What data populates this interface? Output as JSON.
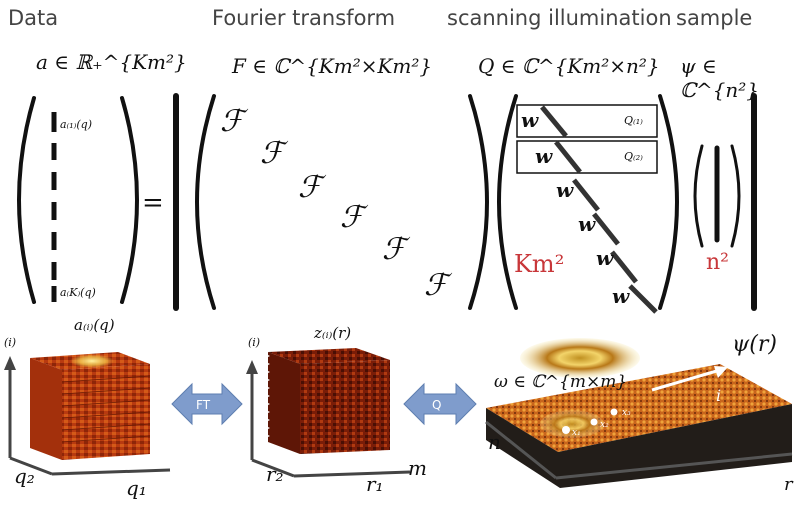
{
  "headers": {
    "data": "Data",
    "fourier": "Fourier transform",
    "scanning": "scanning illumination",
    "sample": "sample"
  },
  "math": {
    "a_def": "a ∈ ℝ₊^{Km²}",
    "F_def": "F ∈ ℂ^{Km²×Km²}",
    "Q_def": "Q ∈ ℂ^{Km²×n²}",
    "psi_def": "ψ ∈ ℂ^{n²}",
    "a1": "a₍₁₎(q)",
    "aK": "a₍K₎(q)",
    "equals": "=",
    "F_symbol": "ℱ",
    "w_symbol": "w",
    "Q1": "Q₍₁₎",
    "Q2": "Q₍₂₎",
    "Km2": "Km²",
    "n2": "n²"
  },
  "bottom": {
    "i_label": "(i)",
    "a_title": "a₍ᵢ₎(q)",
    "z_title": "z₍ᵢ₎(r)",
    "psi_title": "ψ(r)",
    "q2": "q₂",
    "q1": "q₁",
    "r2": "r₂",
    "r1": "r₁",
    "m": "m",
    "n": "n",
    "r_edge": "r",
    "ft": "FT",
    "q": "Q",
    "omega": "ω ∈ ℂ^{m×m}",
    "x1": "x₁",
    "x2": "x₂",
    "x3": "x₃",
    "i_arrow": "i"
  },
  "colors": {
    "accent_red": "#c8373a",
    "arrow_blue": "#7f9ccc"
  }
}
